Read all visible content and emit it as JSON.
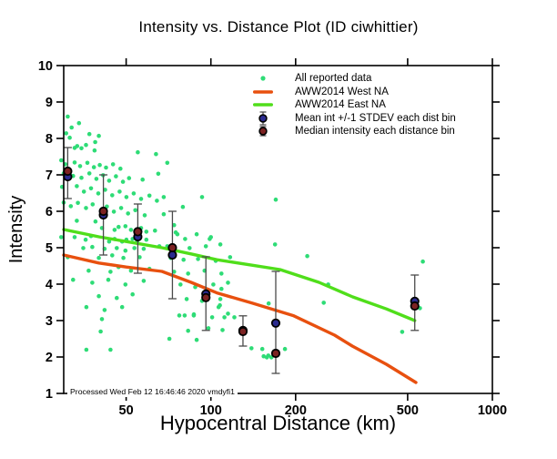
{
  "title": "Intensity vs. Distance Plot (ID ciwhittier)",
  "footer": "Processed Wed Feb 12 16:46:46 2020 vmdyfi1",
  "colors": {
    "all_data": "#2EDC76",
    "west_line": "#E8500F",
    "east_line": "#50DE1B",
    "mean_fill": "#2B2B8F",
    "median_fill": "#7C2222",
    "marker_stroke": "#000000",
    "errorbar": "#4a4a4a",
    "axis": "#000000"
  },
  "legend": {
    "items": [
      {
        "label": "All reported data",
        "marker": "dot"
      },
      {
        "label": "AWW2014 West NA",
        "marker": "line-west"
      },
      {
        "label": "AWW2014 East NA",
        "marker": "line-east"
      },
      {
        "label": "Mean int +/-1 STDEV each dist bin",
        "marker": "mean"
      },
      {
        "label": "Median intensity each distance bin",
        "marker": "median"
      }
    ]
  },
  "chart_data": {
    "type": "scatter",
    "title": "Intensity vs. Distance Plot (ID ciwhittier)",
    "xlabel": "Hypocentral Distance (km)",
    "ylabel": "Intensity",
    "x_scale": "log",
    "xlim": [
      30,
      1000
    ],
    "ylim": [
      1,
      10
    ],
    "x_ticks": [
      50,
      100,
      200,
      500,
      1000
    ],
    "y_ticks": [
      1,
      2,
      3,
      4,
      5,
      6,
      7,
      8,
      9,
      10
    ],
    "grid": false,
    "legend_position": "upper right inside",
    "series": [
      {
        "name": "All reported data",
        "type": "scatter",
        "color_key": "all_data",
        "points": [
          [
            31,
            8.6
          ],
          [
            34,
            8.42
          ],
          [
            32,
            8.3
          ],
          [
            30.6,
            8.14
          ],
          [
            37,
            8.12
          ],
          [
            40,
            8.07
          ],
          [
            31.5,
            8.02
          ],
          [
            38.8,
            7.9
          ],
          [
            36,
            7.82
          ],
          [
            33.5,
            7.79
          ],
          [
            32.8,
            7.74
          ],
          [
            34.7,
            7.73
          ],
          [
            38.6,
            7.67
          ],
          [
            55,
            7.62
          ],
          [
            63.8,
            7.57
          ],
          [
            70,
            7.33
          ],
          [
            65,
            7.03
          ],
          [
            29.4,
            7.4
          ],
          [
            32.8,
            7.34
          ],
          [
            36.4,
            7.33
          ],
          [
            30.4,
            7.29
          ],
          [
            44.9,
            7.29
          ],
          [
            40.3,
            7.27
          ],
          [
            34.3,
            7.24
          ],
          [
            42.4,
            7.2
          ],
          [
            38.4,
            7.21
          ],
          [
            47.7,
            7.17
          ],
          [
            30,
            7.04
          ],
          [
            37,
            7.04
          ],
          [
            41.4,
            6.99
          ],
          [
            32.4,
            6.97
          ],
          [
            46,
            6.96
          ],
          [
            34.7,
            6.92
          ],
          [
            51.2,
            6.91
          ],
          [
            39.2,
            6.89
          ],
          [
            57.2,
            6.87
          ],
          [
            43.5,
            6.84
          ],
          [
            48.7,
            6.81
          ],
          [
            29.6,
            6.67
          ],
          [
            33.4,
            6.69
          ],
          [
            37.5,
            6.63
          ],
          [
            42.1,
            6.59
          ],
          [
            35.4,
            6.54
          ],
          [
            47.4,
            6.54
          ],
          [
            39.8,
            6.49
          ],
          [
            53.2,
            6.49
          ],
          [
            60.5,
            6.43
          ],
          [
            44.6,
            6.44
          ],
          [
            50.1,
            6.39
          ],
          [
            93,
            6.39
          ],
          [
            68,
            6.39
          ],
          [
            56.5,
            6.34
          ],
          [
            64.3,
            6.29
          ],
          [
            30,
            6.24
          ],
          [
            33.7,
            6.23
          ],
          [
            170,
            6.32
          ],
          [
            36,
            6.09
          ],
          [
            38,
            6.19
          ],
          [
            31.8,
            6.14
          ],
          [
            79.5,
            6.12
          ],
          [
            42.7,
            6.13
          ],
          [
            45.2,
            5.99
          ],
          [
            48,
            6.09
          ],
          [
            50.8,
            5.94
          ],
          [
            53.9,
            6.03
          ],
          [
            58.2,
            5.89
          ],
          [
            68,
            5.92
          ],
          [
            33.4,
            5.74
          ],
          [
            38.9,
            5.72
          ],
          [
            74,
            5.62
          ],
          [
            41,
            5.54
          ],
          [
            45.5,
            5.49
          ],
          [
            47,
            5.57
          ],
          [
            49.7,
            5.59
          ],
          [
            52,
            5.49
          ],
          [
            56.5,
            5.54
          ],
          [
            59,
            5.44
          ],
          [
            63.3,
            5.47
          ],
          [
            75,
            5.42
          ],
          [
            89,
            5.37
          ],
          [
            76,
            5.37
          ],
          [
            29.4,
            5.29
          ],
          [
            32.8,
            5.29
          ],
          [
            35.9,
            5.22
          ],
          [
            37.5,
            5.32
          ],
          [
            43.5,
            5.17
          ],
          [
            45.5,
            5.24
          ],
          [
            48.4,
            5.17
          ],
          [
            50.1,
            5.22
          ],
          [
            52.7,
            5.24
          ],
          [
            54.7,
            5.17
          ],
          [
            59,
            5.22
          ],
          [
            100,
            5.29
          ],
          [
            81,
            5.24
          ],
          [
            99,
            5.24
          ],
          [
            35.2,
            4.99
          ],
          [
            37.9,
            5.02
          ],
          [
            41.9,
            4.97
          ],
          [
            46.3,
            4.99
          ],
          [
            49.7,
            4.92
          ],
          [
            53.5,
            4.99
          ],
          [
            57.7,
            4.97
          ],
          [
            65.6,
            5.04
          ],
          [
            70,
            5.04
          ],
          [
            84,
            4.99
          ],
          [
            96,
            5.04
          ],
          [
            108,
            5.09
          ],
          [
            169,
            5.09
          ],
          [
            220,
            4.77
          ],
          [
            31,
            4.74
          ],
          [
            40,
            4.72
          ],
          [
            44.6,
            4.79
          ],
          [
            48.9,
            4.72
          ],
          [
            55.8,
            4.74
          ],
          [
            72,
            4.72
          ],
          [
            80,
            4.67
          ],
          [
            90,
            4.69
          ],
          [
            104,
            4.64
          ],
          [
            117,
            4.74
          ],
          [
            566,
            4.62
          ],
          [
            36.8,
            4.37
          ],
          [
            44,
            4.34
          ],
          [
            47,
            4.47
          ],
          [
            52,
            4.37
          ],
          [
            60.5,
            4.42
          ],
          [
            74,
            4.34
          ],
          [
            83,
            4.29
          ],
          [
            95,
            4.37
          ],
          [
            109,
            4.29
          ],
          [
            261,
            3.99
          ],
          [
            32.4,
            4.12
          ],
          [
            37.9,
            4.04
          ],
          [
            43.2,
            4.12
          ],
          [
            49.7,
            3.99
          ],
          [
            57.7,
            4.09
          ],
          [
            78,
            3.99
          ],
          [
            88,
            3.92
          ],
          [
            102,
            3.99
          ],
          [
            115,
            4.04
          ],
          [
            40,
            3.67
          ],
          [
            46.3,
            3.62
          ],
          [
            52.7,
            3.72
          ],
          [
            82,
            3.59
          ],
          [
            93,
            3.54
          ],
          [
            108,
            3.59
          ],
          [
            109,
            3.87
          ],
          [
            251.6,
            3.49
          ],
          [
            160.4,
            3.47
          ],
          [
            36.1,
            3.37
          ],
          [
            41.9,
            3.29
          ],
          [
            48.4,
            3.37
          ],
          [
            41,
            3.04
          ],
          [
            87,
            3.17
          ],
          [
            101,
            3.09
          ],
          [
            115,
            3.19
          ],
          [
            77.2,
            3.14
          ],
          [
            80.7,
            3.14
          ],
          [
            86.9,
            3.14
          ],
          [
            106.5,
            3.37
          ],
          [
            107.6,
            3.42
          ],
          [
            111.7,
            3.09
          ],
          [
            121.2,
            3.09
          ],
          [
            553,
            3.34
          ],
          [
            40.6,
            2.7
          ],
          [
            36.1,
            2.2
          ],
          [
            44,
            2.2
          ],
          [
            71.2,
            2.5
          ],
          [
            98,
            2.79
          ],
          [
            110,
            2.74
          ],
          [
            83,
            2.72
          ],
          [
            89,
            2.47
          ],
          [
            478,
            2.69
          ],
          [
            139.4,
            2.24
          ],
          [
            152.3,
            2.22
          ],
          [
            158,
            1.99
          ],
          [
            164,
            1.99
          ],
          [
            183.3,
            2.22
          ],
          [
            154,
            2.02
          ],
          [
            160,
            2.04
          ]
        ]
      },
      {
        "name": "AWW2014 West NA",
        "type": "line",
        "color_key": "west_line",
        "points": [
          [
            30,
            4.8
          ],
          [
            40,
            4.58
          ],
          [
            50,
            4.47
          ],
          [
            67,
            4.35
          ],
          [
            85,
            4.05
          ],
          [
            105,
            3.76
          ],
          [
            140,
            3.48
          ],
          [
            197,
            3.13
          ],
          [
            275,
            2.6
          ],
          [
            318,
            2.3
          ],
          [
            420,
            1.8
          ],
          [
            535,
            1.3
          ]
        ]
      },
      {
        "name": "AWW2014 East NA",
        "type": "line",
        "color_key": "east_line",
        "points": [
          [
            30,
            5.5
          ],
          [
            40,
            5.3
          ],
          [
            50,
            5.17
          ],
          [
            67,
            5.0
          ],
          [
            85,
            4.83
          ],
          [
            105,
            4.67
          ],
          [
            140,
            4.52
          ],
          [
            176,
            4.4
          ],
          [
            242,
            4.05
          ],
          [
            319,
            3.65
          ],
          [
            420,
            3.32
          ],
          [
            530,
            3.0
          ]
        ]
      },
      {
        "name": "Mean int +/-1 STDEV each dist bin",
        "type": "scatter-errorbar",
        "color_key": "mean_fill",
        "points": [
          {
            "x": 31,
            "y": 6.95,
            "lo": 6.35,
            "hi": 7.75
          },
          {
            "x": 41.5,
            "y": 5.9,
            "lo": 4.8,
            "hi": 7.0
          },
          {
            "x": 55,
            "y": 5.3,
            "lo": 4.3,
            "hi": 6.2
          },
          {
            "x": 73,
            "y": 4.8,
            "lo": 3.6,
            "hi": 6.0
          },
          {
            "x": 96,
            "y": 3.73,
            "lo": 2.73,
            "hi": 4.75
          },
          {
            "x": 130,
            "y": 2.73,
            "lo": 2.3,
            "hi": 3.13
          },
          {
            "x": 170,
            "y": 2.93,
            "lo": 1.55,
            "hi": 4.35
          },
          {
            "x": 530,
            "y": 3.53,
            "lo": 2.73,
            "hi": 4.25
          }
        ]
      },
      {
        "name": "Median intensity each distance bin",
        "type": "scatter-big",
        "color_key": "median_fill",
        "points": [
          [
            31,
            7.1
          ],
          [
            41.5,
            6.0
          ],
          [
            55,
            5.44
          ],
          [
            73,
            5.0
          ],
          [
            96,
            3.63
          ],
          [
            130,
            2.7
          ],
          [
            170,
            2.1
          ],
          [
            530,
            3.4
          ]
        ]
      }
    ]
  }
}
